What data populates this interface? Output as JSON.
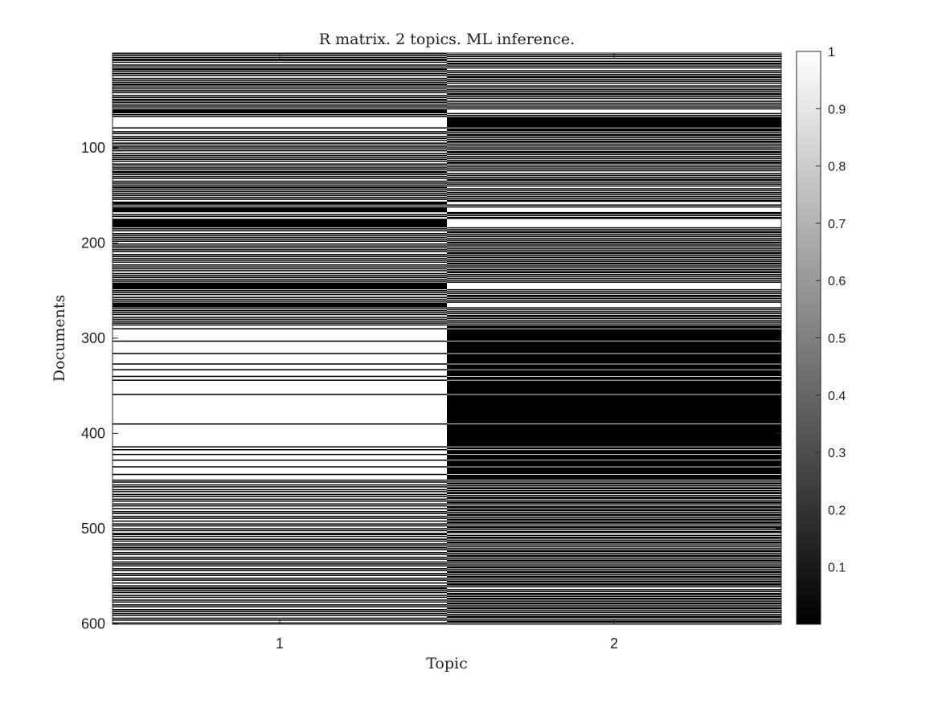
{
  "chart_data": {
    "type": "heatmap",
    "title": "R matrix. 2 topics. ML inference.",
    "xlabel": "Topic",
    "ylabel": "Documents",
    "x_categories": [
      "1",
      "2"
    ],
    "y_range": [
      1,
      600
    ],
    "y_ticks": [
      "100",
      "200",
      "300",
      "400",
      "500",
      "600"
    ],
    "colorbar_ticks": [
      "0.1",
      "0.2",
      "0.3",
      "0.4",
      "0.5",
      "0.6",
      "0.7",
      "0.8",
      "0.9",
      "1"
    ],
    "colorbar_range": [
      0,
      1
    ],
    "colormap": "gray",
    "n_documents": 600,
    "topic1_values": [
      0,
      1,
      0,
      1,
      0,
      1,
      0,
      0,
      1,
      0,
      1,
      1,
      0,
      1,
      0,
      1,
      0,
      0,
      1,
      0,
      1,
      0,
      1,
      0,
      1,
      1,
      0,
      1,
      0,
      1,
      0,
      1,
      0,
      0,
      1,
      0,
      1,
      0,
      1,
      0,
      1,
      0,
      1,
      1,
      0,
      1,
      0,
      1,
      0,
      0,
      1,
      0,
      1,
      0,
      1,
      0,
      1,
      0,
      1,
      0,
      0,
      0,
      0,
      1,
      0,
      1,
      0,
      1,
      1,
      1,
      1,
      1,
      1,
      1,
      1,
      1,
      1,
      1,
      0,
      1,
      1,
      1,
      0,
      1,
      0,
      1,
      1,
      0,
      1,
      0,
      1,
      0,
      1,
      1,
      0,
      1,
      0,
      1,
      0,
      1,
      0,
      1,
      0,
      1,
      1,
      0,
      1,
      0,
      1,
      0,
      1,
      0,
      1,
      0,
      1,
      1,
      0,
      1,
      0,
      1,
      0,
      1,
      0,
      1,
      0,
      0,
      1,
      0,
      1,
      0,
      1,
      0,
      1,
      1,
      0,
      1,
      0,
      1,
      0,
      1,
      0,
      0,
      1,
      0,
      1,
      0,
      1,
      0,
      1,
      0,
      1,
      0,
      1,
      0,
      1,
      1,
      0,
      0,
      0,
      1,
      0,
      1,
      0,
      0,
      0,
      0,
      0,
      1,
      1,
      0,
      1,
      0,
      1,
      1,
      0,
      0,
      0,
      0,
      0,
      0,
      0,
      0,
      0,
      1,
      0,
      1,
      0,
      1,
      1,
      0,
      1,
      0,
      1,
      0,
      1,
      0,
      1,
      0,
      1,
      1,
      0,
      1,
      0,
      1,
      0,
      1,
      0,
      1,
      0,
      1,
      1,
      0,
      1,
      0,
      1,
      0,
      1,
      0,
      1,
      0,
      1,
      1,
      0,
      1,
      0,
      1,
      0,
      1,
      0,
      1,
      1,
      0,
      1,
      0,
      1,
      0,
      1,
      0,
      1,
      0,
      1,
      0,
      0,
      0,
      0,
      0,
      0,
      0,
      1,
      0,
      1,
      0,
      1,
      0,
      1,
      1,
      0,
      1,
      0,
      1,
      0,
      1,
      0,
      0,
      0,
      0,
      0,
      1,
      0,
      1,
      0,
      1,
      0,
      1,
      0,
      1,
      1,
      0,
      1,
      0,
      1,
      0,
      1,
      0,
      1,
      0,
      1,
      1,
      1,
      0,
      1,
      1,
      1,
      1,
      1,
      1,
      1,
      1,
      1,
      1,
      1,
      1,
      0,
      1,
      1,
      1,
      1,
      1,
      1,
      1,
      1,
      1,
      1,
      1,
      1,
      0,
      1,
      1,
      1,
      1,
      1,
      1,
      1,
      1,
      1,
      1,
      0,
      1,
      1,
      1,
      1,
      1,
      0,
      1,
      1,
      1,
      1,
      1,
      1,
      0,
      1,
      1,
      1,
      0,
      1,
      1,
      1,
      1,
      1,
      1,
      1,
      1,
      1,
      1,
      1,
      1,
      1,
      1,
      0,
      1,
      1,
      1,
      1,
      1,
      1,
      1,
      1,
      1,
      1,
      1,
      1,
      1,
      1,
      1,
      1,
      1,
      1,
      1,
      1,
      1,
      1,
      1,
      1,
      1,
      1,
      1,
      1,
      1,
      1,
      0,
      1,
      1,
      1,
      1,
      1,
      1,
      1,
      1,
      1,
      1,
      1,
      1,
      1,
      1,
      1,
      1,
      1,
      1,
      1,
      1,
      1,
      1,
      1,
      0,
      1,
      1,
      0,
      1,
      1,
      1,
      1,
      0,
      1,
      1,
      1,
      1,
      1,
      0,
      1,
      1,
      1,
      1,
      1,
      1,
      0,
      1,
      1,
      1,
      1,
      1,
      1,
      1,
      0,
      1,
      1,
      1,
      1,
      1,
      0,
      1,
      0,
      1,
      1,
      0,
      1,
      0,
      1,
      1,
      0,
      1,
      0,
      1,
      1,
      0,
      1,
      0,
      1,
      1,
      0,
      1,
      0,
      1,
      1,
      0,
      1,
      0,
      1,
      1,
      0,
      1,
      1,
      0,
      1,
      0,
      1,
      1,
      0,
      1,
      0,
      1,
      1,
      0,
      1,
      1,
      0,
      1,
      0,
      1,
      1,
      0,
      1,
      0,
      1,
      1,
      0,
      0,
      1,
      0,
      1,
      1,
      0,
      1,
      0,
      1,
      1,
      0,
      1,
      0,
      1,
      0,
      1,
      0,
      1,
      1,
      0,
      1,
      0,
      1,
      1,
      0,
      1,
      0,
      1,
      1,
      0,
      1,
      0,
      1,
      0,
      1,
      1,
      0,
      1,
      0,
      1,
      1,
      0,
      1,
      0,
      1,
      1,
      0,
      1,
      0,
      1,
      1,
      0,
      1,
      1,
      0,
      1,
      0,
      0,
      1,
      0,
      1,
      0,
      1,
      1,
      0,
      1,
      0,
      1,
      1,
      0,
      1,
      0,
      1,
      1,
      0,
      1,
      0,
      1,
      1,
      0,
      1,
      0,
      1,
      0,
      1,
      0,
      1,
      1,
      0,
      1,
      0,
      1,
      1,
      0,
      1,
      0,
      1,
      0,
      1,
      1,
      0,
      1,
      0,
      1,
      1,
      0,
      1,
      0,
      1,
      0,
      1,
      1,
      0,
      1,
      0,
      1,
      1,
      0,
      1,
      1,
      0,
      1,
      0,
      1,
      0,
      1
    ]
  }
}
